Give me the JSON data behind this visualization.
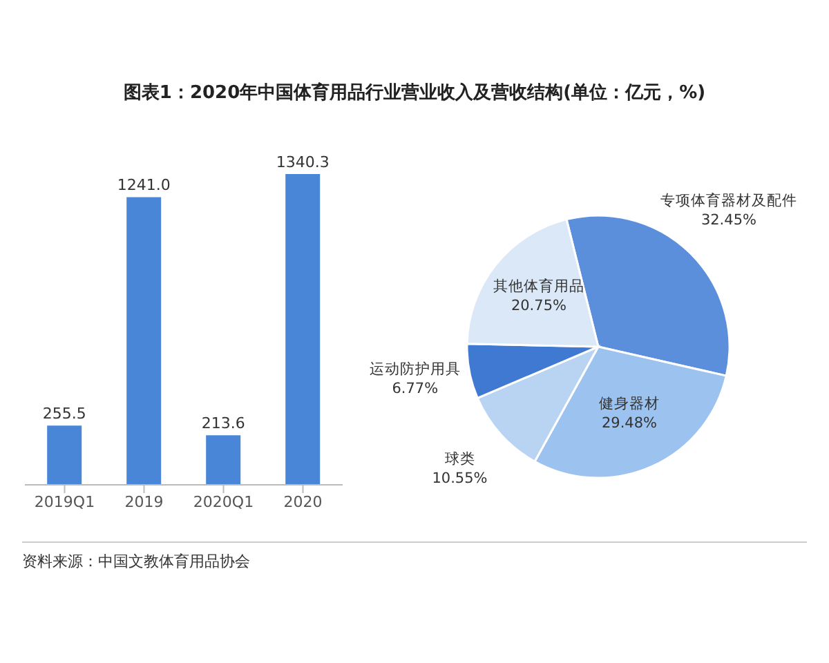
{
  "chart_data": [
    {
      "type": "bar",
      "title": "图表1：2020年中国体育用品行业营业收入及营收结构(单位：亿元，%)",
      "categories": [
        "2019Q1",
        "2019",
        "2020Q1",
        "2020"
      ],
      "values": [
        255.5,
        1241.0,
        213.6,
        1340.3
      ],
      "value_labels": [
        "255.5",
        "1241.0",
        "213.6",
        "1340.3"
      ],
      "color": "#4a86d8",
      "tick_labels": "x",
      "annotations": [
        "资料来源：中国文教体育用品协会"
      ]
    },
    {
      "type": "pie",
      "categories": [
        "专项体育器材及配件",
        "健身器材",
        "球类",
        "运动防护用具",
        "其他体育用品"
      ],
      "values": [
        32.45,
        29.48,
        10.55,
        6.77,
        20.75
      ],
      "value_labels": [
        "32.45%",
        "29.48%",
        "10.55%",
        "6.77%",
        "20.75%"
      ],
      "colors": [
        "#5b8fdc",
        "#9cc2ef",
        "#b9d4f3",
        "#3f79d2",
        "#dbe8f8"
      ]
    }
  ]
}
